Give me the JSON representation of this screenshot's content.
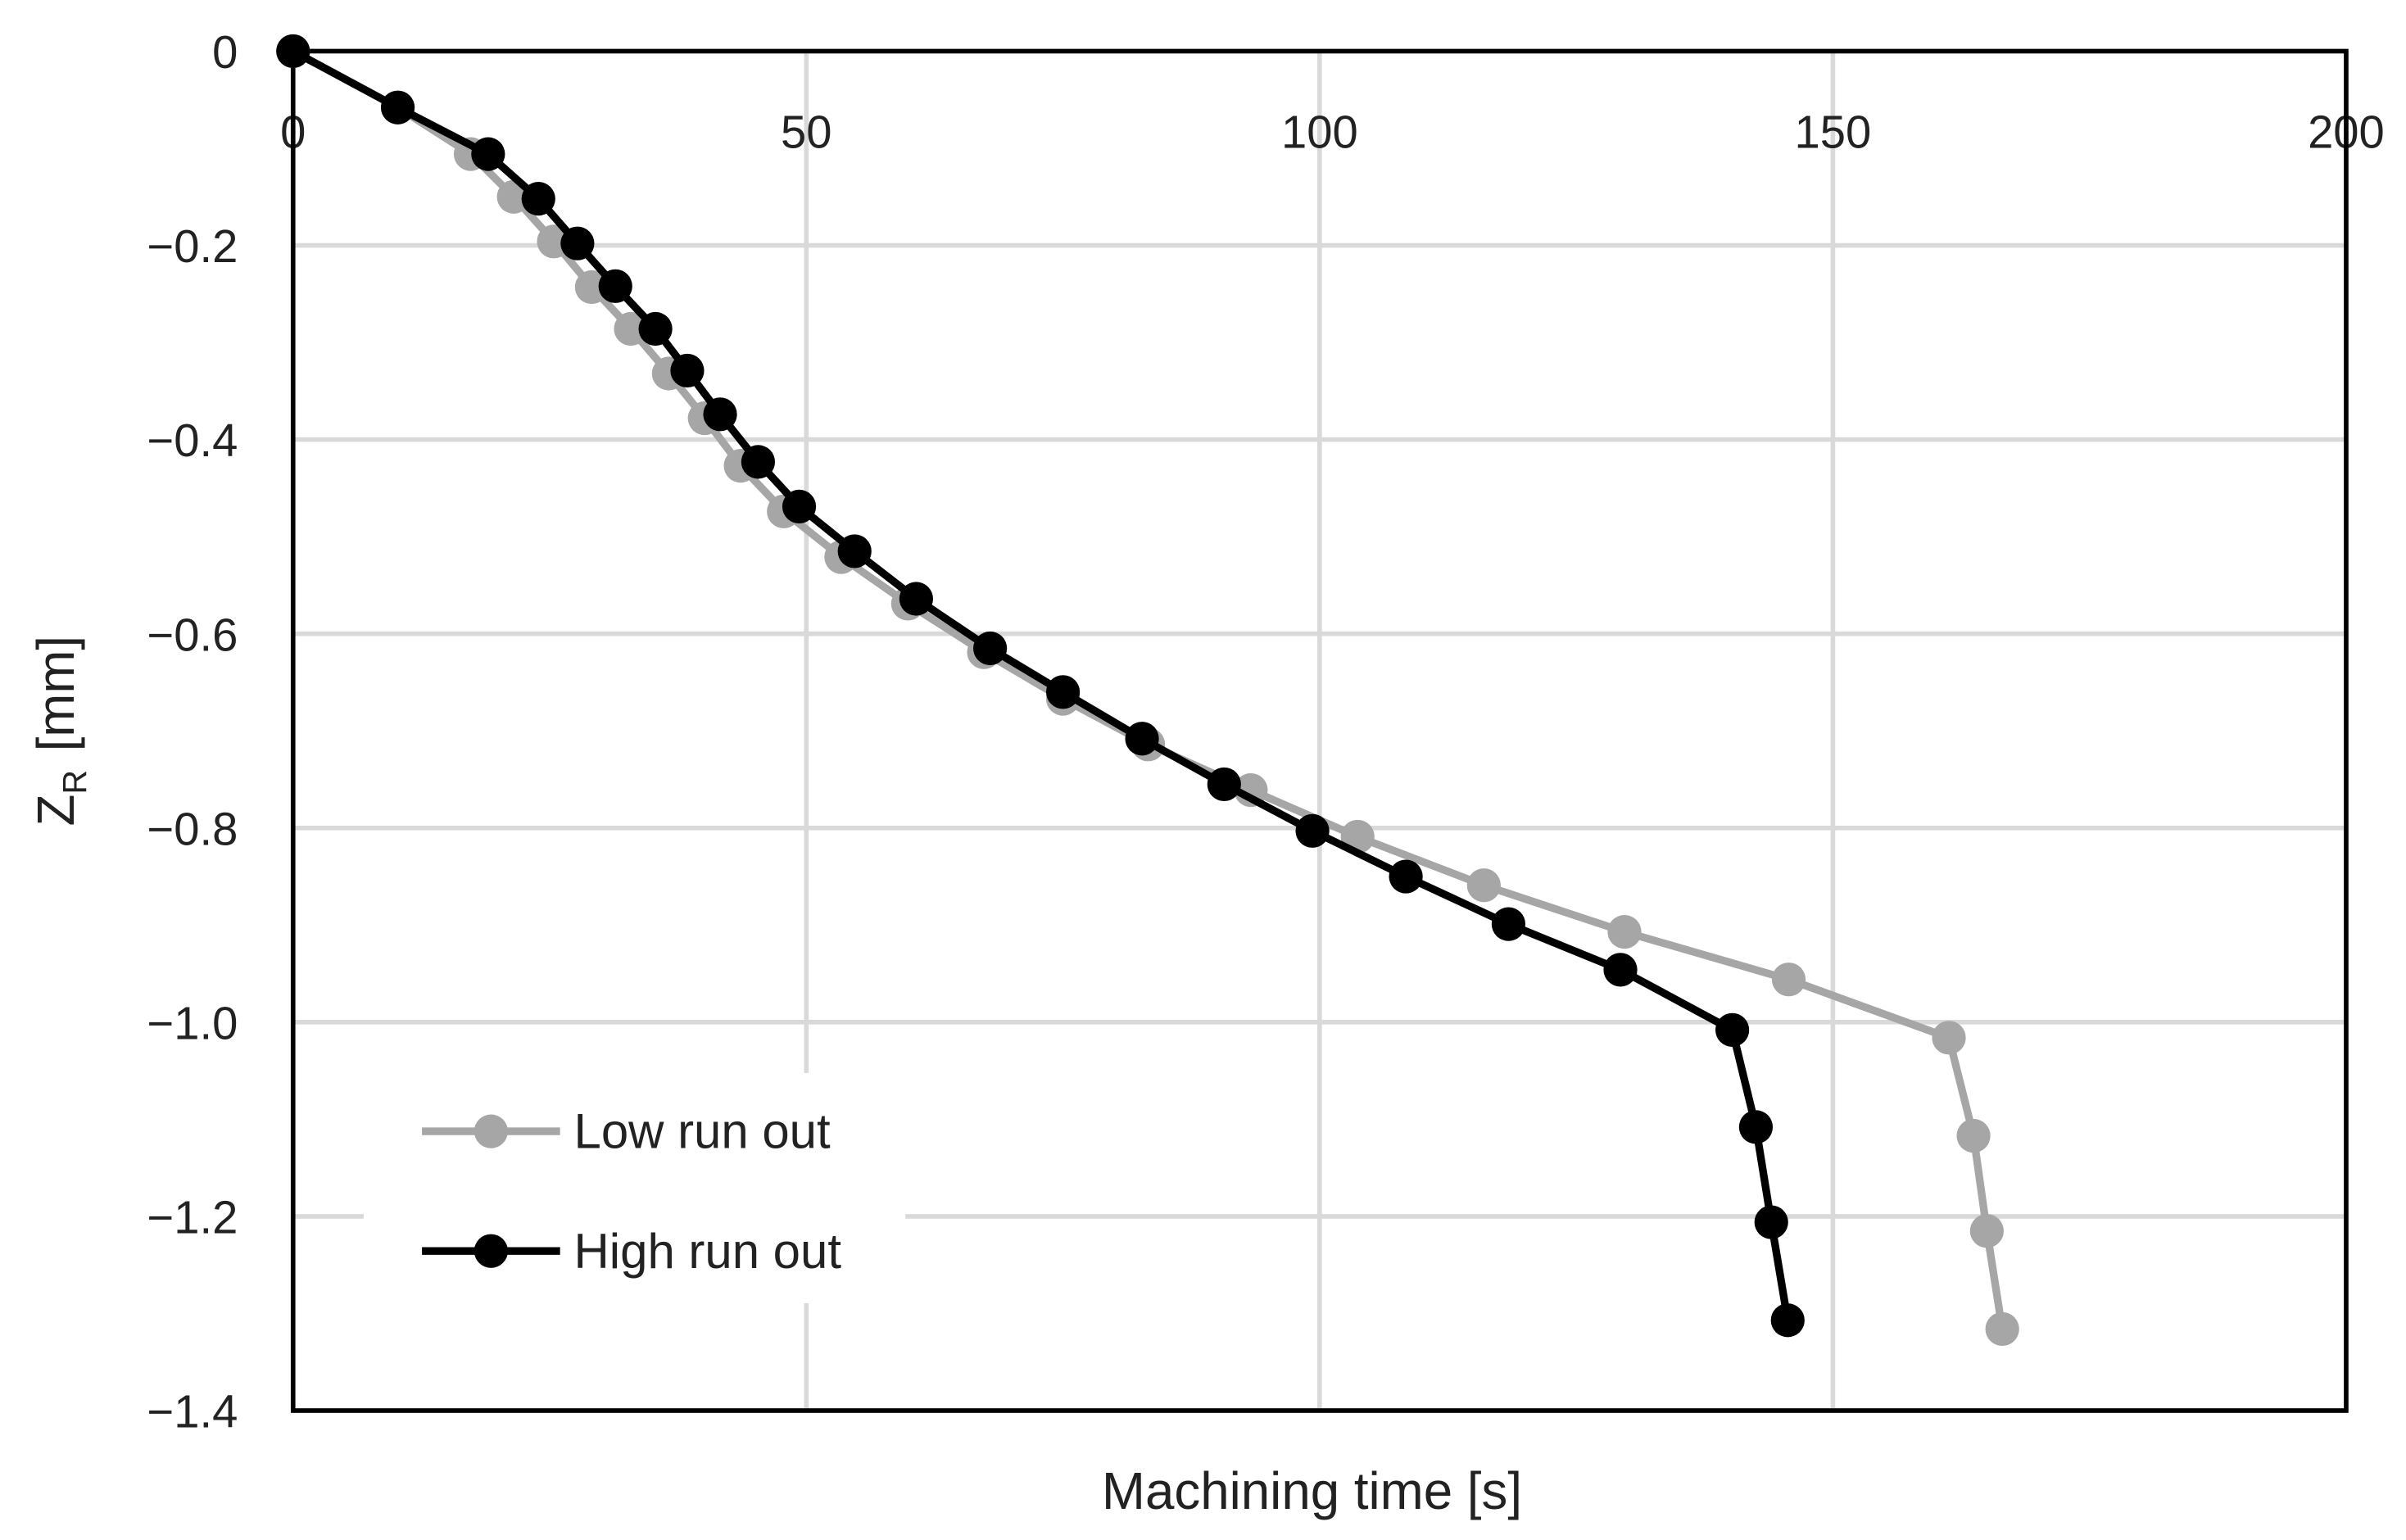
{
  "chart_data": {
    "type": "line",
    "x_label": "Machining  time [s]",
    "y_label": "Z",
    "y_label_sub": "R",
    "y_label_unit": "[mm]",
    "xlim": [
      0,
      200
    ],
    "xticks": [
      0,
      50,
      100,
      150,
      200
    ],
    "ylim": [
      -1.4,
      0
    ],
    "yticks": [
      0,
      {
        "value": -0.2,
        "label": "−0.2"
      },
      {
        "value": -0.4,
        "label": "−0.4"
      },
      {
        "value": -0.6,
        "label": "−0.6"
      },
      {
        "value": -0.8,
        "label": "−0.8"
      },
      {
        "value": -1.0,
        "label": "−1.0"
      },
      {
        "value": -1.2,
        "label": "−1.2"
      },
      {
        "value": -1.4,
        "label": "−1.4"
      }
    ],
    "grid": true,
    "legend": "lower left",
    "series": [
      {
        "name": "Low run out",
        "color": "#a6a6a6",
        "x": [
          0,
          10.2,
          17.3,
          21.5,
          25.4,
          29.1,
          32.9,
          36.6,
          40.1,
          43.6,
          47.8,
          53.4,
          59.9,
          67.3,
          75.0,
          83.3,
          93.3,
          103.7,
          116.0,
          129.7,
          145.7,
          161.3,
          163.7,
          165.0,
          166.5
        ],
        "values": [
          0,
          -0.058,
          -0.106,
          -0.15,
          -0.196,
          -0.243,
          -0.286,
          -0.332,
          -0.378,
          -0.427,
          -0.474,
          -0.521,
          -0.569,
          -0.619,
          -0.667,
          -0.714,
          -0.761,
          -0.809,
          -0.859,
          -0.907,
          -0.956,
          -1.016,
          -1.117,
          -1.215,
          -1.316
        ]
      },
      {
        "name": "High run out",
        "color": "#000000",
        "x": [
          0,
          10.2,
          19.0,
          23.9,
          27.7,
          31.4,
          35.3,
          38.4,
          41.6,
          45.3,
          49.3,
          54.7,
          60.7,
          67.9,
          75.0,
          82.7,
          90.7,
          99.3,
          108.4,
          118.4,
          129.3,
          140.2,
          142.5,
          144.0,
          145.6
        ],
        "values": [
          0,
          -0.058,
          -0.106,
          -0.152,
          -0.198,
          -0.242,
          -0.286,
          -0.329,
          -0.374,
          -0.423,
          -0.469,
          -0.515,
          -0.564,
          -0.615,
          -0.66,
          -0.708,
          -0.755,
          -0.803,
          -0.85,
          -0.899,
          -0.946,
          -1.008,
          -1.108,
          -1.206,
          -1.307
        ]
      }
    ]
  }
}
